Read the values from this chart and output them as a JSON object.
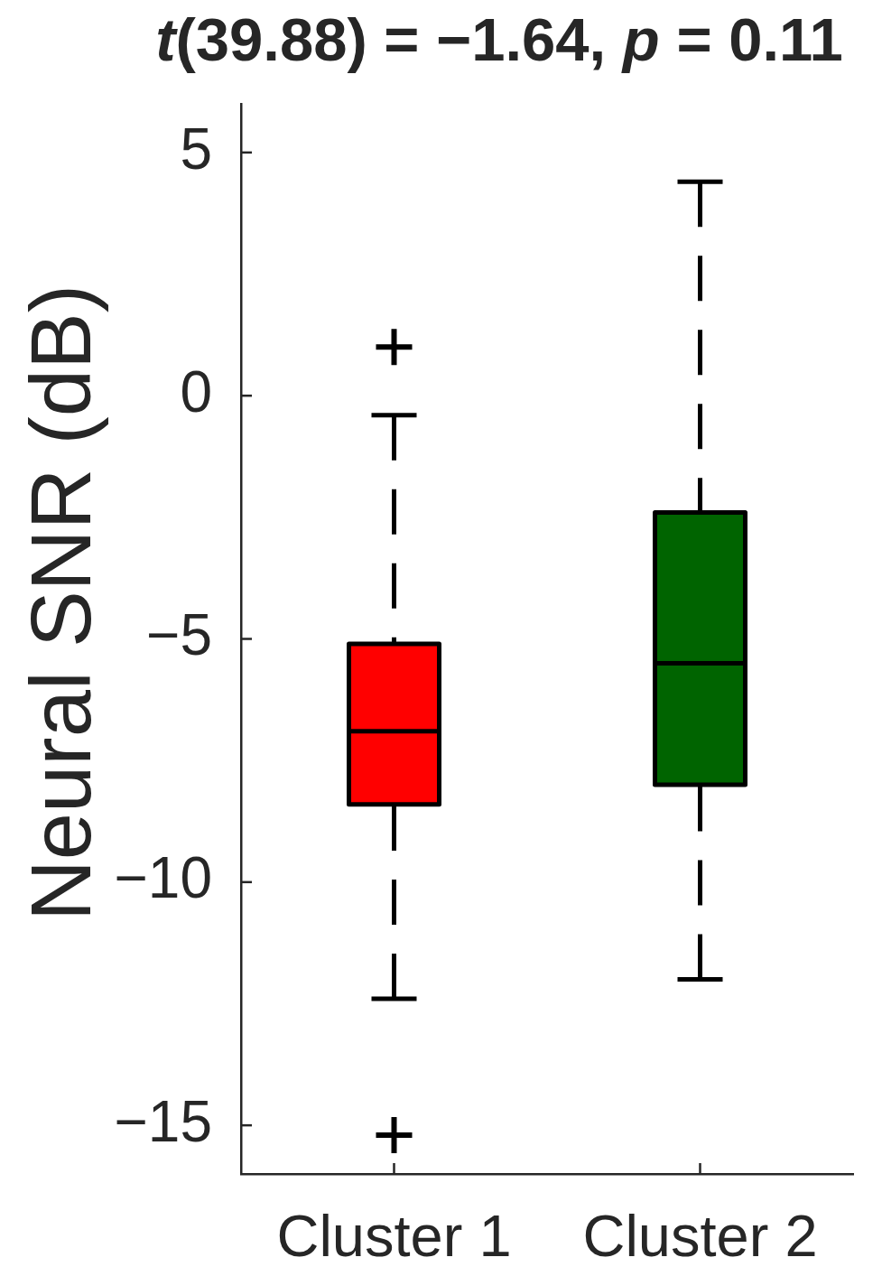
{
  "chart_data": {
    "type": "box",
    "title": "t(39.88) = −1.64, p = 0.11",
    "ylabel": "Neural SNR (dB)",
    "categories": [
      "Cluster 1",
      "Cluster 2"
    ],
    "boxes": [
      {
        "low": -12.4,
        "q1": -8.4,
        "median": -6.9,
        "q3": -5.1,
        "high": -0.4,
        "outliers": [
          1.0,
          -15.2
        ]
      },
      {
        "low": -12.0,
        "q1": -8.0,
        "median": -5.5,
        "q3": -2.4,
        "high": 4.4
      }
    ],
    "colors": [
      "#ff0000",
      "#006400"
    ],
    "ylim": [
      -16,
      6
    ],
    "yticks": [
      {
        "value": -15,
        "label": "−15"
      },
      {
        "value": -10,
        "label": "−10"
      },
      {
        "value": -5,
        "label": "−5"
      },
      0,
      5
    ],
    "marker": "cross",
    "line_style": "dashed"
  }
}
